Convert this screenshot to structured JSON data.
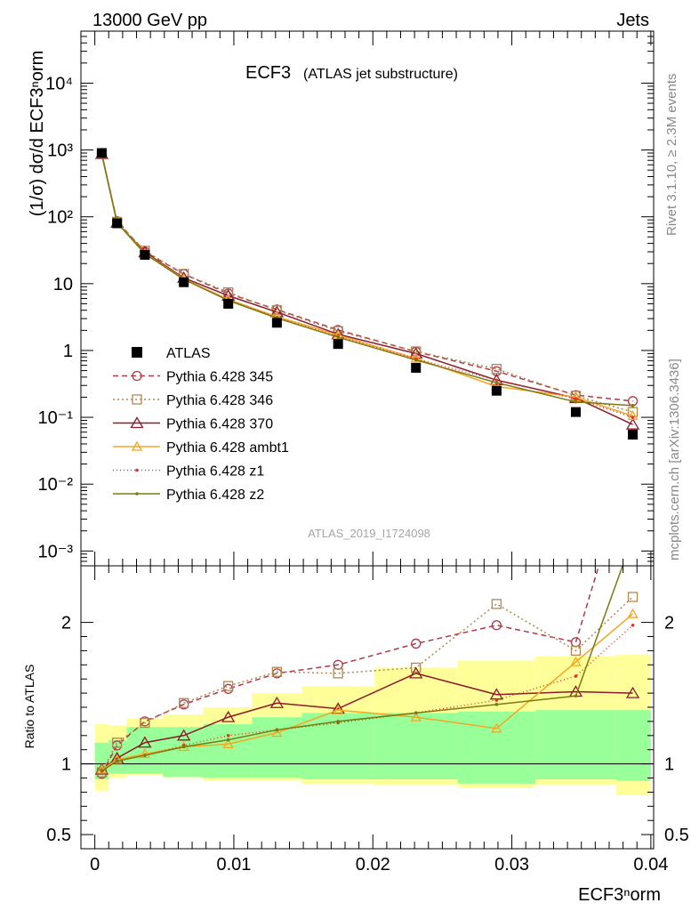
{
  "header": {
    "left": "13000 GeV pp",
    "right": "Jets"
  },
  "title": {
    "main": "ECF3",
    "sub": "(ATLAS jet substructure)"
  },
  "side_text": {
    "top": "Rivet 3.1.10, ≥ 2.3M events",
    "bottom": "mcplots.cern.ch [arXiv:1306.3436]"
  },
  "watermark": "ATLAS_2019_I1724098",
  "ratio_ylabel": "Ratio to ATLAS",
  "xlabel": "ECF3ⁿorm",
  "ylabel": "(1/σ) dσ/d ECF3ⁿorm",
  "chart_data": {
    "type": "line",
    "x": [
      0.0005,
      0.0016,
      0.0036,
      0.0064,
      0.0096,
      0.0131,
      0.0175,
      0.0231,
      0.0289,
      0.0346,
      0.0387
    ],
    "bin_edges": [
      0.0,
      0.001,
      0.0023,
      0.0049,
      0.0078,
      0.0113,
      0.0149,
      0.0201,
      0.0261,
      0.0317,
      0.0375,
      0.04
    ],
    "xlim": [
      -0.001,
      0.0402
    ],
    "main_ylim": [
      0.0006,
      60000
    ],
    "main_yscale": "log",
    "main_yticks": [
      "10⁻³",
      "10⁻²",
      "10⁻¹",
      "1",
      "10",
      "10²",
      "10³",
      "10⁴"
    ],
    "ratio_ylim": [
      0.4,
      2.4
    ],
    "ratio_yticks": [
      "0.5",
      "1",
      "2"
    ],
    "xticks": [
      "0",
      "0.01",
      "0.02",
      "0.03",
      "0.04"
    ],
    "xtick_values": [
      0,
      0.01,
      0.02,
      0.03,
      0.04
    ],
    "data": {
      "name": "ATLAS",
      "values": [
        900,
        80,
        27,
        10.5,
        5.0,
        2.6,
        1.25,
        0.55,
        0.25,
        0.12,
        0.055
      ],
      "band_inner": [
        [
          0.89,
          1.15
        ],
        [
          0.93,
          1.17
        ],
        [
          0.93,
          1.26
        ],
        [
          0.91,
          1.26
        ],
        [
          0.9,
          1.28
        ],
        [
          0.9,
          1.33
        ],
        [
          0.89,
          1.36
        ],
        [
          0.89,
          1.36
        ],
        [
          0.86,
          1.37
        ],
        [
          0.89,
          1.38
        ],
        [
          0.88,
          1.38
        ]
      ],
      "band_outer": [
        [
          0.81,
          1.28
        ],
        [
          0.9,
          1.27
        ],
        [
          0.92,
          1.32
        ],
        [
          0.9,
          1.35
        ],
        [
          0.88,
          1.4
        ],
        [
          0.88,
          1.5
        ],
        [
          0.86,
          1.55
        ],
        [
          0.85,
          1.68
        ],
        [
          0.83,
          1.73
        ],
        [
          0.85,
          1.76
        ],
        [
          0.78,
          1.77
        ]
      ]
    },
    "series": [
      {
        "name": "Pythia 6.428 345",
        "color": "#b03a4a",
        "dash": "6,4",
        "marker": "circle",
        "values": [
          870,
          86,
          30,
          13.9,
          7.1,
          4.1,
          2.03,
          0.96,
          0.49,
          0.215,
          0.175
        ],
        "ratio": [
          0.93,
          1.13,
          1.3,
          1.42,
          1.53,
          1.64,
          1.7,
          1.85,
          1.98,
          1.86,
          3.2
        ]
      },
      {
        "name": "Pythia 6.428 346",
        "color": "#b08850",
        "dash": "2,3",
        "marker": "square",
        "values": [
          875,
          84,
          31,
          14.0,
          7.4,
          4.0,
          1.95,
          0.97,
          0.53,
          0.21,
          0.12
        ],
        "ratio": [
          0.94,
          1.15,
          1.29,
          1.43,
          1.55,
          1.65,
          1.64,
          1.68,
          2.13,
          1.8,
          2.18
        ]
      },
      {
        "name": "Pythia 6.428 370",
        "color": "#8b1a2b",
        "dash": "",
        "marker": "triangle",
        "values": [
          870,
          82,
          29.5,
          12.2,
          6.6,
          3.75,
          1.75,
          0.9,
          0.36,
          0.195,
          0.078
        ],
        "ratio": [
          0.96,
          1.04,
          1.15,
          1.2,
          1.33,
          1.43,
          1.39,
          1.64,
          1.49,
          1.51,
          1.5
        ]
      },
      {
        "name": "Pythia 6.428 ambt1",
        "color": "#f5a623",
        "dash": "",
        "marker": "triangle-small",
        "values": [
          860,
          83,
          28.5,
          11.8,
          5.8,
          3.2,
          1.7,
          0.76,
          0.29,
          0.2,
          0.105
        ],
        "ratio": [
          0.96,
          1.03,
          1.07,
          1.12,
          1.14,
          1.22,
          1.38,
          1.33,
          1.25,
          1.72,
          2.06
        ]
      },
      {
        "name": "Pythia 6.428 z1",
        "color": "#e8332a",
        "dash": "1,3",
        "marker": "dot",
        "values": [
          860,
          81,
          28.0,
          11.5,
          5.7,
          3.1,
          1.62,
          0.75,
          0.36,
          0.19,
          0.1
        ],
        "ratio": [
          0.95,
          1.02,
          1.06,
          1.13,
          1.2,
          1.24,
          1.29,
          1.36,
          1.45,
          1.62,
          1.98
        ]
      },
      {
        "name": "Pythia 6.428 z2",
        "color": "#7a7a12",
        "dash": "",
        "marker": "dot",
        "values": [
          865,
          81.5,
          28.0,
          11.6,
          5.6,
          3.05,
          1.58,
          0.72,
          0.33,
          0.17,
          0.15
        ],
        "ratio": [
          0.95,
          1.02,
          1.06,
          1.12,
          1.17,
          1.24,
          1.3,
          1.36,
          1.42,
          1.48,
          2.6
        ]
      }
    ]
  }
}
